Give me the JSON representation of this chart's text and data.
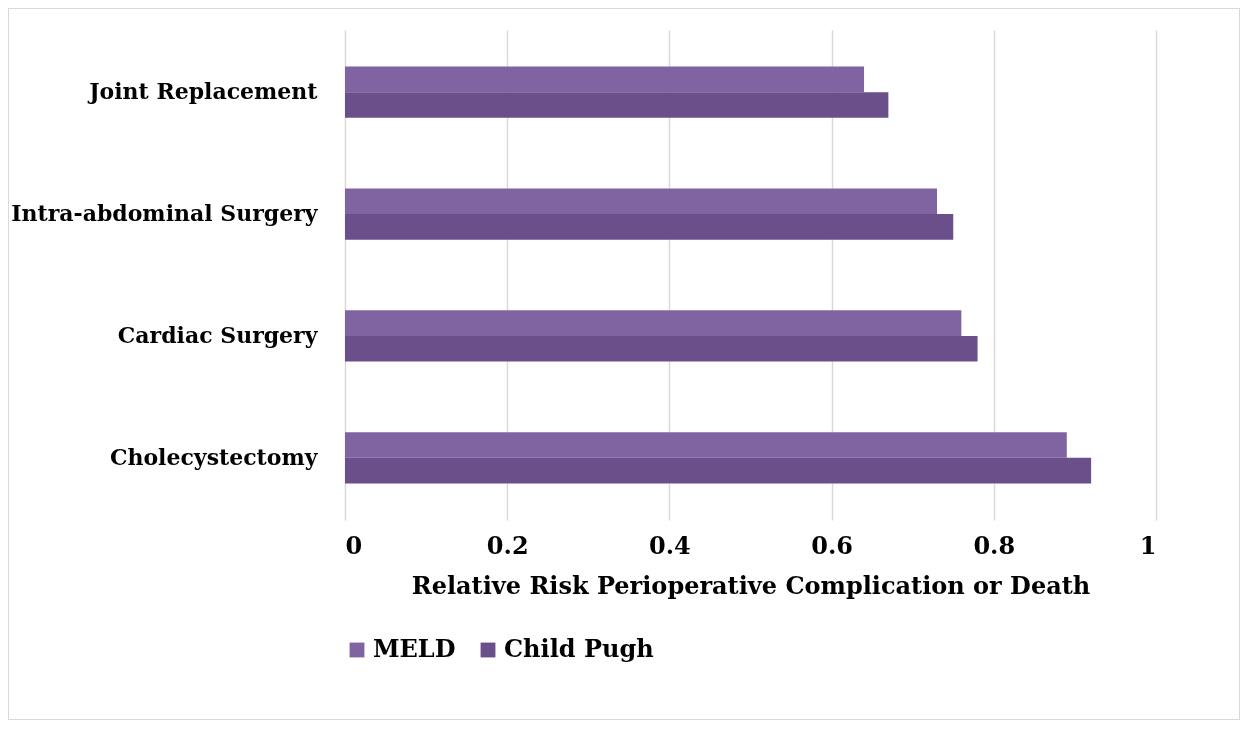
{
  "chart_data": {
    "type": "bar",
    "orientation": "horizontal",
    "xlabel": "Relative Risk Perioperative Complication or Death",
    "categories": [
      "Joint Replacement",
      "Intra-abdominal Surgery",
      "Cardiac Surgery",
      "Cholecystectomy"
    ],
    "series": [
      {
        "name": "MELD",
        "color": "#8064a2",
        "values": [
          0.64,
          0.73,
          0.76,
          0.89
        ]
      },
      {
        "name": "Child Pugh",
        "color": "#6a4f8a",
        "values": [
          0.67,
          0.75,
          0.78,
          0.92
        ]
      }
    ],
    "xlim": [
      0,
      1
    ],
    "xticks": [
      0,
      0.2,
      0.4,
      0.6,
      0.8,
      1
    ],
    "grid": "x",
    "legend": "bottom"
  }
}
